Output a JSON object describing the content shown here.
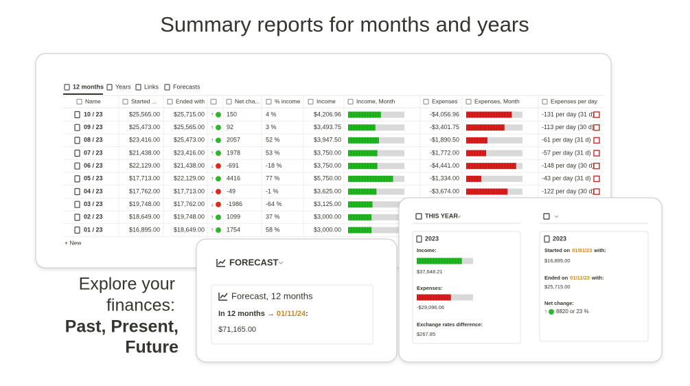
{
  "header": {
    "title": "Summary reports for months and years"
  },
  "tabs": [
    "12 months",
    "Years",
    "Links",
    "Forecasts"
  ],
  "table": {
    "columns": [
      "Name",
      "Started ...",
      "Ended with",
      "Net cha...",
      "% income",
      "Income",
      "Income, Month",
      "Expenses",
      "Expenses, Month",
      "Expenses per day"
    ],
    "rows": [
      {
        "name": "10 / 23",
        "started": "$25,565.00",
        "ended": "$25,715.00",
        "trend": "↑",
        "net": "150",
        "pct": "4 %",
        "income": "$4,206.96",
        "expenses": "-$4,056.96",
        "per_day": "-131 per day (31 d)"
      },
      {
        "name": "09 / 23",
        "started": "$25,473.00",
        "ended": "$25,565.00",
        "trend": "↑",
        "net": "92",
        "pct": "3 %",
        "income": "$3,493.75",
        "expenses": "-$3,401.75",
        "per_day": "-113 per day (30 d)"
      },
      {
        "name": "08 / 23",
        "started": "$23,416.00",
        "ended": "$25,473.00",
        "trend": "↑",
        "net": "2057",
        "pct": "52 %",
        "income": "$3,947.50",
        "expenses": "-$1,890.50",
        "per_day": "-61 per day (31 d)"
      },
      {
        "name": "07 / 23",
        "started": "$21,438.00",
        "ended": "$23,416.00",
        "trend": "↑",
        "net": "1978",
        "pct": "53 %",
        "income": "$3,750.00",
        "expenses": "-$1,772.00",
        "per_day": "-57 per day (31 d)"
      },
      {
        "name": "06 / 23",
        "started": "$22,129.00",
        "ended": "$21,438.00",
        "trend": "↓",
        "net": "-691",
        "pct": "-18 %",
        "income": "$3,750.00",
        "expenses": "-$4,441.00",
        "per_day": "-148 per day (30 d)"
      },
      {
        "name": "05 / 23",
        "started": "$17,713.00",
        "ended": "$22,129.00",
        "trend": "↑",
        "net": "4416",
        "pct": "77 %",
        "income": "$5,750.00",
        "expenses": "-$1,334.00",
        "per_day": "-43 per day (31 d)"
      },
      {
        "name": "04 / 23",
        "started": "$17,762.00",
        "ended": "$17,713.00",
        "trend": "↓",
        "net": "-49",
        "pct": "-1 %",
        "income": "$3,625.00",
        "expenses": "-$3,674.00",
        "per_day": "-122 per day (30 d)"
      },
      {
        "name": "03 / 23",
        "started": "$19,748.00",
        "ended": "$17,762.00",
        "trend": "↓",
        "net": "-1986",
        "pct": "-64 %",
        "income": "$3,125.00"
      },
      {
        "name": "02 / 23",
        "started": "$18,649.00",
        "ended": "$19,748.00",
        "trend": "↑",
        "net": "1099",
        "pct": "37 %",
        "income": "$3,000.00"
      },
      {
        "name": "01 / 23",
        "started": "$16,895.00",
        "ended": "$18,649.00",
        "trend": "↑",
        "net": "1754",
        "pct": "58 %",
        "income": "$3,000.00"
      }
    ],
    "new_row": "+ New"
  },
  "tagline": {
    "lines": [
      "Explore your",
      "finances:"
    ],
    "bold": [
      "Past, Present,",
      "Future"
    ]
  },
  "forecast": {
    "title": "FORECAST",
    "card_title": "Forecast, 12 months",
    "prefix": "In 12 months →",
    "date": "01/11/24",
    "suffix": ":",
    "amount": "$71,165.00"
  },
  "year_panel": {
    "tab": "THIS YEAR",
    "summary": {
      "year": "2023",
      "income_label": "Income:",
      "income": "$37,648.21",
      "expenses_label": "Expenses:",
      "expenses": "-$29,096.06",
      "fx_label": "Exchange rates difference:",
      "fx": "$267.85"
    },
    "balance": {
      "year": "2023",
      "started_prefix": "Started on",
      "started_date": "01/01/23",
      "started_suffix": "with:",
      "started": "$16,895.00",
      "ended_prefix": "Ended on",
      "ended_date": "01/11/23",
      "ended_suffix": "with:",
      "ended": "$25,715.00",
      "net_label": "Net change:",
      "net_arrow": "↑",
      "net": "8820 or 23 %"
    }
  }
}
